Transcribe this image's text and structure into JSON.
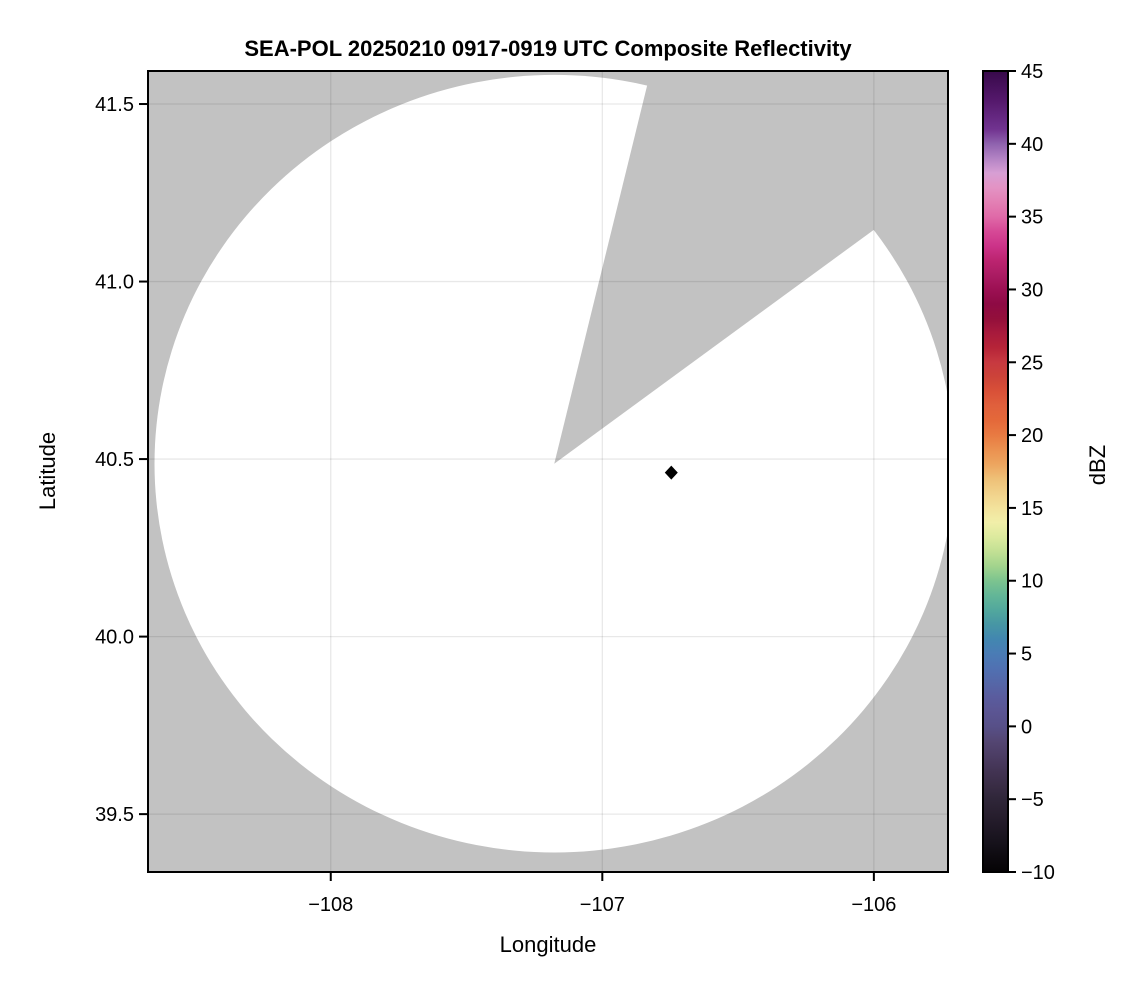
{
  "figure": {
    "background": "#ffffff"
  },
  "chart_data": {
    "type": "heatmap",
    "title": "SEA-POL 20250210 0917-0919 UTC Composite Reflectivity",
    "xlabel": "Longitude",
    "ylabel": "Latitude",
    "xlim": [
      -108.673,
      -105.727
    ],
    "ylim": [
      39.337,
      41.593
    ],
    "grid": true,
    "xticks": [
      {
        "value": -108,
        "label": "−108"
      },
      {
        "value": -107,
        "label": "−107"
      },
      {
        "value": -106,
        "label": "−106"
      }
    ],
    "yticks": [
      {
        "value": 41.5,
        "label": "41.5"
      },
      {
        "value": 41.0,
        "label": "41.0"
      },
      {
        "value": 40.5,
        "label": "40.5"
      },
      {
        "value": 40.0,
        "label": "40.0"
      },
      {
        "value": 39.5,
        "label": "39.5"
      }
    ],
    "colors": {
      "nodata_gray": "#c2c2c2",
      "coverage_white": "#ffffff",
      "frame_black": "#000000",
      "gridline": "rgba(0,0,0,0.09)"
    },
    "radar": {
      "name": "SEA-POL",
      "center_lon": -107.177,
      "center_lat": 40.487,
      "range_lon_deg": 1.472,
      "range_lat_deg": 1.095,
      "missing_sector_azimuth_deg": [
        13.8,
        53.8
      ]
    },
    "echo_points": [
      {
        "lon": -106.746,
        "lat": 40.462,
        "shape": "diamond",
        "color": "#000000"
      }
    ],
    "colorbar": {
      "label": "dBZ",
      "min": -10,
      "max": 45,
      "ticks": [
        {
          "value": 45,
          "label": "45"
        },
        {
          "value": 40,
          "label": "40"
        },
        {
          "value": 35,
          "label": "35"
        },
        {
          "value": 30,
          "label": "30"
        },
        {
          "value": 25,
          "label": "25"
        },
        {
          "value": 20,
          "label": "20"
        },
        {
          "value": 15,
          "label": "15"
        },
        {
          "value": 10,
          "label": "10"
        },
        {
          "value": 5,
          "label": "5"
        },
        {
          "value": 0,
          "label": "0"
        },
        {
          "value": -5,
          "label": "−5"
        },
        {
          "value": -10,
          "label": "−10"
        }
      ],
      "stops": [
        [
          45,
          "#37094a"
        ],
        [
          43,
          "#54186b"
        ],
        [
          41,
          "#713390"
        ],
        [
          40,
          "#8f62ae"
        ],
        [
          39,
          "#b383c4"
        ],
        [
          38,
          "#d79fd4"
        ],
        [
          37,
          "#e393c4"
        ],
        [
          36,
          "#e380b4"
        ],
        [
          35,
          "#e06aa8"
        ],
        [
          34,
          "#d64996"
        ],
        [
          33,
          "#cc3389"
        ],
        [
          32,
          "#bc2470"
        ],
        [
          31,
          "#ab1c63"
        ],
        [
          30,
          "#9c1053"
        ],
        [
          29,
          "#8e0a44"
        ],
        [
          28,
          "#930f3b"
        ],
        [
          27,
          "#a81a3c"
        ],
        [
          26,
          "#b62438"
        ],
        [
          25,
          "#c73940"
        ],
        [
          24,
          "#cc4339"
        ],
        [
          23,
          "#d95138"
        ],
        [
          22,
          "#e0603c"
        ],
        [
          21,
          "#e4693a"
        ],
        [
          20,
          "#e87a42"
        ],
        [
          19,
          "#eb9150"
        ],
        [
          18,
          "#eda55f"
        ],
        [
          17,
          "#eec077"
        ],
        [
          16,
          "#f1d28b"
        ],
        [
          15,
          "#f3e29c"
        ],
        [
          14,
          "#f1efa9"
        ],
        [
          13,
          "#dcea9e"
        ],
        [
          12,
          "#c2e094"
        ],
        [
          11,
          "#a2d48d"
        ],
        [
          10,
          "#7cc48f"
        ],
        [
          9,
          "#63b697"
        ],
        [
          8,
          "#52a89d"
        ],
        [
          7,
          "#4796a4"
        ],
        [
          6,
          "#4287b0"
        ],
        [
          5,
          "#4a7cb5"
        ],
        [
          4,
          "#5071b2"
        ],
        [
          3,
          "#5567a8"
        ],
        [
          2,
          "#5a5c9e"
        ],
        [
          1,
          "#5b5593"
        ],
        [
          0,
          "#575088"
        ],
        [
          -1,
          "#544673"
        ],
        [
          -2,
          "#4c3d64"
        ],
        [
          -3,
          "#433454"
        ],
        [
          -4,
          "#3a2d46"
        ],
        [
          -5,
          "#2f2639"
        ],
        [
          -6,
          "#281f2f"
        ],
        [
          -7,
          "#1f1825"
        ],
        [
          -8,
          "#16121b"
        ],
        [
          -9,
          "#0d0a0f"
        ],
        [
          -10,
          "#050305"
        ]
      ]
    }
  }
}
